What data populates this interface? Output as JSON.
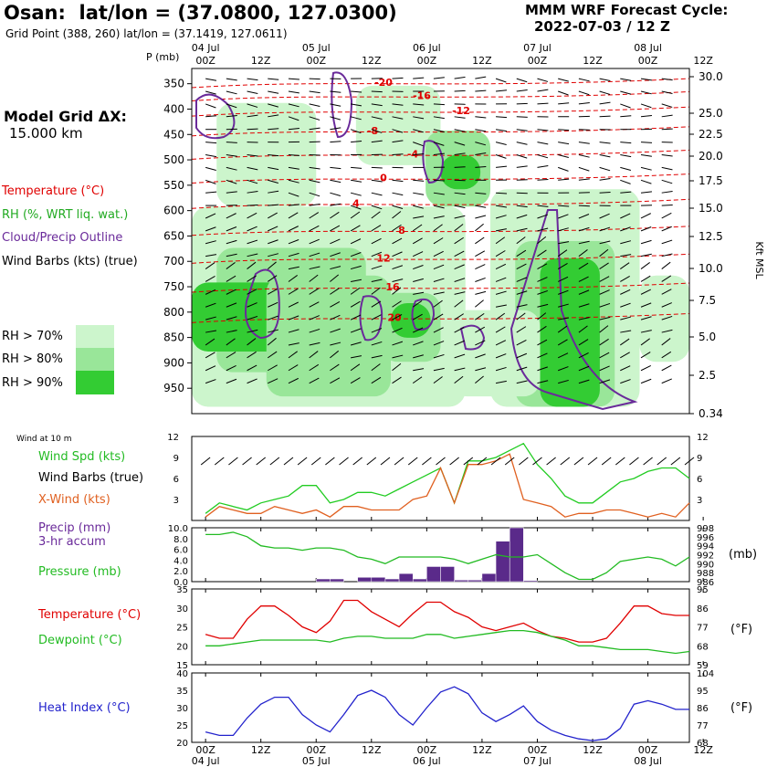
{
  "header": {
    "title": "Osan:  lat/lon = (37.0800, 127.0300)",
    "subtitle": "Grid Point (388, 260) lat/lon = (37.1419, 127.0611)",
    "cycle_line1": "MMM WRF Forecast Cycle:",
    "cycle_line2": "2022-07-03 / 12  Z"
  },
  "model_grid": {
    "line1": "Model Grid ΔX:",
    "line2": "15.000 km"
  },
  "legend": {
    "temperature": "Temperature (°C)",
    "rh": "RH (%, WRT liq. wat.)",
    "cloud": "Cloud/Precip Outline",
    "wind": "Wind Barbs (kts) (true)",
    "rh70": "RH > 70%",
    "rh80": "RH > 80%",
    "rh90": "RH > 90%"
  },
  "colors": {
    "rh70": "#ccf5cc",
    "rh80": "#99e699",
    "rh90": "#33cc33",
    "temp": "#e00000",
    "green": "#22bb22",
    "purple": "#6a2a9a",
    "orange": "#e06020",
    "blue": "#2222cc"
  },
  "time_axis": {
    "days": [
      "04 Jul",
      "05 Jul",
      "06 Jul",
      "07 Jul",
      "08 Jul"
    ],
    "hours": [
      "00Z",
      "12Z",
      "00Z",
      "12Z",
      "00Z",
      "12Z",
      "00Z",
      "12Z",
      "00Z",
      "12Z"
    ]
  },
  "chart_data": [
    {
      "type": "heatmap",
      "name": "cross-section",
      "ylabel": "P (mb)",
      "y2label": "Kft MSL",
      "pressure_levels": [
        350,
        400,
        450,
        500,
        550,
        600,
        650,
        700,
        750,
        800,
        850,
        900,
        950
      ],
      "kft_levels": [
        "30.0",
        "25.0",
        "22.5",
        "20.0",
        "17.5",
        "15.0",
        "12.5",
        "10.0",
        "7.5",
        "5.0",
        "2.5",
        "0.34"
      ],
      "temperature_labels": [
        "-20",
        "-16",
        "-12",
        "-8",
        "-4",
        "0",
        "4",
        "8",
        "12",
        "16",
        "20"
      ]
    },
    {
      "type": "line",
      "name": "wind",
      "panel_label": "Wind at 10 m",
      "series_labels": [
        "Wind Spd (kts)",
        "Wind Barbs (true)",
        "X-Wind (kts)"
      ],
      "y_ticks": [
        "12",
        "9",
        "6",
        "3"
      ],
      "ylim": [
        0,
        12
      ],
      "x_hours": [
        0,
        3,
        6,
        9,
        12,
        15,
        18,
        21,
        24,
        27,
        30,
        33,
        36,
        39,
        42,
        45,
        48,
        51,
        54,
        57,
        60,
        63,
        66,
        69,
        72,
        75,
        78,
        81,
        84,
        87,
        90,
        93,
        96,
        99,
        102,
        105
      ],
      "series": [
        {
          "name": "Wind Spd (kts)",
          "values": [
            1,
            2.5,
            2,
            1.5,
            2.5,
            3,
            3.5,
            5,
            5,
            2.5,
            3,
            4,
            4,
            3.5,
            4.5,
            5.5,
            6.5,
            7.5,
            2.5,
            8.5,
            8.5,
            9,
            10,
            11,
            8,
            6,
            3.5,
            2.5,
            2.5,
            4,
            5.5,
            6,
            7,
            7.5,
            7.5,
            6
          ]
        },
        {
          "name": "X-Wind (kts)",
          "values": [
            0.5,
            2,
            1.5,
            1,
            1,
            2,
            1.5,
            1,
            1.5,
            0.5,
            2,
            2,
            1.5,
            1.5,
            1.5,
            3,
            3.5,
            7.5,
            2.5,
            8,
            8,
            8.5,
            9.5,
            3,
            2.5,
            2,
            0.5,
            1,
            1,
            1.5,
            1.5,
            1,
            0.5,
            1,
            0.5,
            2.5
          ]
        }
      ]
    },
    {
      "type": "bar",
      "name": "precip-pressure",
      "series_labels": [
        "Precip (mm)",
        "3-hr accum",
        "Pressure (mb)"
      ],
      "y_ticks": [
        "10.0",
        "8.0",
        "6.0",
        "4.0",
        "2.0",
        "0.0"
      ],
      "y2_ticks": [
        "998",
        "996",
        "994",
        "992",
        "990",
        "988",
        "986"
      ],
      "y2label": "(mb)",
      "precip_hours": [
        27,
        30,
        36,
        39,
        42,
        45,
        48,
        51,
        54,
        57,
        60,
        63,
        66,
        69,
        72
      ],
      "precip_values": [
        0.5,
        0.5,
        0.8,
        0.8,
        0.5,
        1.5,
        0.5,
        2.8,
        2.8,
        0.3,
        0.3,
        1.5,
        7.5,
        10,
        0.2
      ],
      "pressure_values": [
        996.5,
        996.5,
        997,
        996,
        994,
        993.5,
        993.5,
        993,
        993.5,
        993.5,
        993,
        991.5,
        991,
        990,
        991.5,
        991.5,
        991.5,
        991.5,
        991,
        990,
        991,
        992,
        991.5,
        991.5,
        992,
        990,
        988,
        986.5,
        986.5,
        988,
        990.5,
        991,
        991.5,
        991,
        989.5,
        991.5
      ]
    },
    {
      "type": "line",
      "name": "temperature",
      "series_labels": [
        "Temperature (°C)",
        "Dewpoint (°C)"
      ],
      "y_ticks": [
        "35",
        "30",
        "25",
        "20",
        "15"
      ],
      "y2_ticks": [
        "95",
        "86",
        "77",
        "68",
        "59"
      ],
      "y2label": "(°F)",
      "series": [
        {
          "name": "Temperature (°C)",
          "values": [
            23,
            22,
            22,
            27,
            30.5,
            30.5,
            28,
            25,
            23.5,
            26.5,
            32,
            32,
            29,
            27,
            25,
            28.5,
            31.5,
            31.5,
            29,
            27.5,
            25,
            24,
            25,
            26,
            24,
            22.5,
            22,
            21,
            21,
            22,
            26,
            30.5,
            30.5,
            28.5,
            28,
            28
          ]
        },
        {
          "name": "Dewpoint (°C)",
          "values": [
            20,
            20,
            20.5,
            21,
            21.5,
            21.5,
            21.5,
            21.5,
            21.5,
            21,
            22,
            22.5,
            22.5,
            22,
            22,
            22,
            23,
            23,
            22,
            22.5,
            23,
            23.5,
            24,
            24,
            23.5,
            22.5,
            21.5,
            20,
            20,
            19.5,
            19,
            19,
            19,
            18.5,
            18,
            18.5
          ]
        }
      ]
    },
    {
      "type": "line",
      "name": "heat-index",
      "series_labels": [
        "Heat Index (°C)"
      ],
      "y_ticks": [
        "40",
        "35",
        "30",
        "25",
        "20"
      ],
      "y2_ticks": [
        "104",
        "95",
        "86",
        "77",
        "68"
      ],
      "y2label": "(°F)",
      "series": [
        {
          "name": "Heat Index (°C)",
          "values": [
            23,
            22,
            22,
            27,
            31,
            33,
            33,
            28,
            25,
            23,
            28,
            33.5,
            35,
            33,
            28,
            25,
            30,
            34.5,
            36,
            34,
            28.5,
            26,
            28,
            30.5,
            26,
            23.5,
            22,
            21,
            20.5,
            21,
            24,
            31,
            32,
            31,
            29.5,
            29.5
          ]
        }
      ]
    }
  ]
}
